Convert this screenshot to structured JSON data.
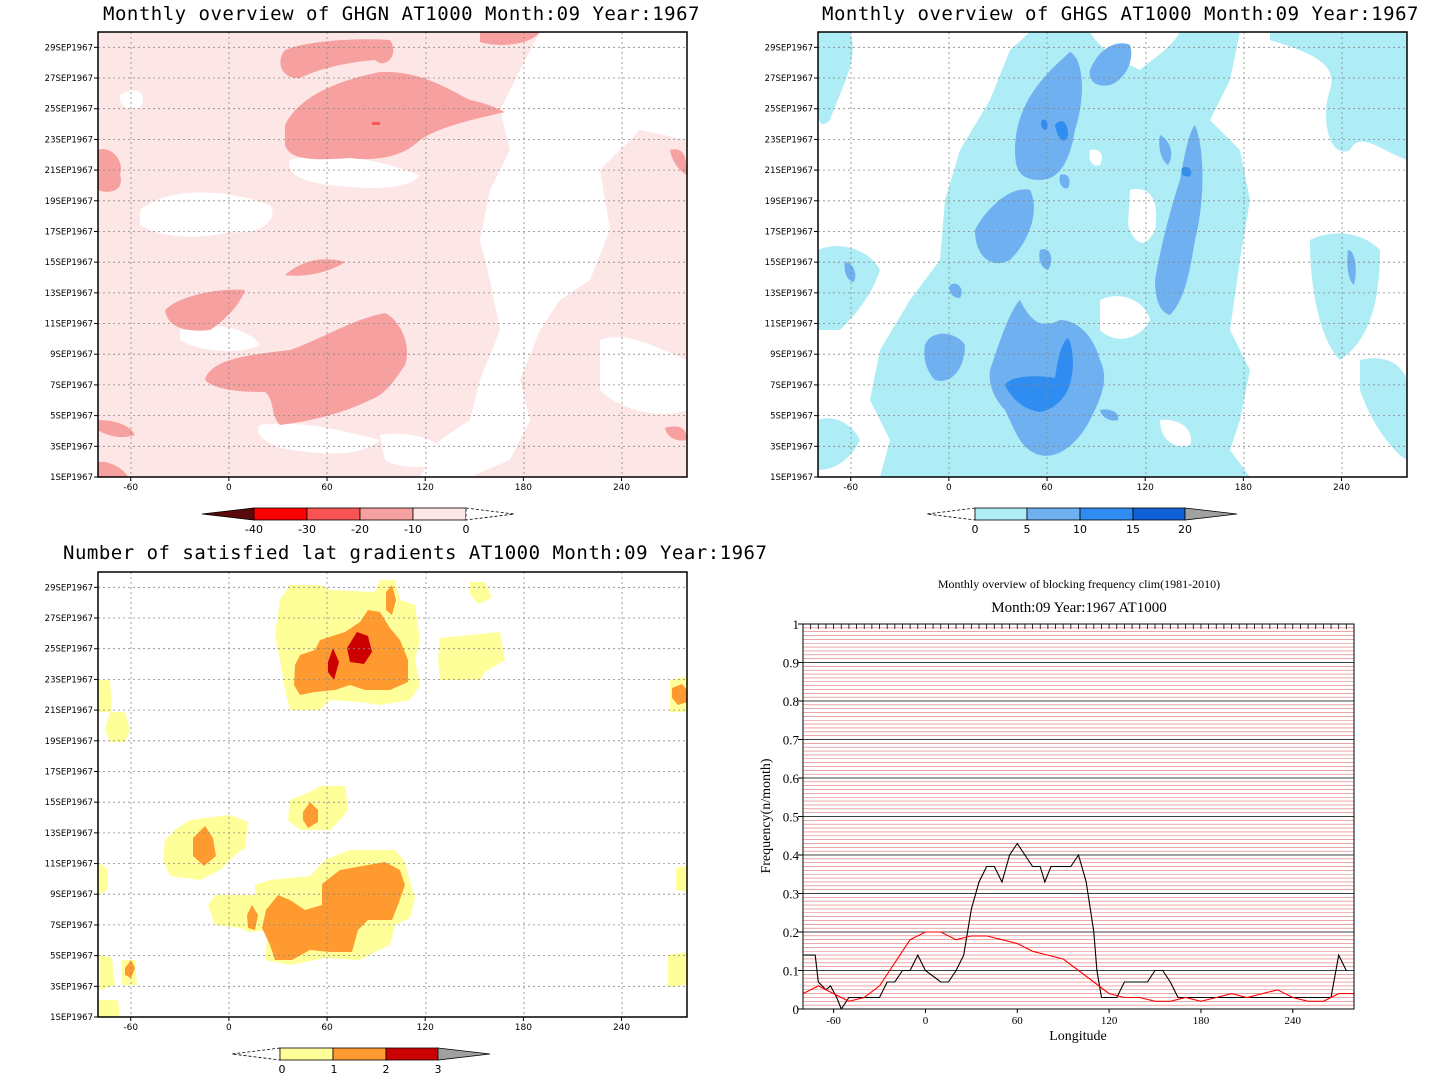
{
  "colors": {
    "red_shades": [
      "#5a0a0a",
      "#ff0000",
      "#f85454",
      "#f7a0a0",
      "#fde6e6"
    ],
    "blue_shades": [
      "#aeecf6",
      "#6fb0f0",
      "#2f8cf0",
      "#1060d8"
    ],
    "orange_shades": [
      "#ffff9a",
      "#ff9a30",
      "#cc0000"
    ],
    "line_black": "#000000",
    "line_red": "#ff0000",
    "grid_red": "#e07070"
  },
  "chart_data": [
    {
      "id": "ghgn",
      "type": "heatmap",
      "title": "Monthly overview of GHGN AT1000 Month:09 Year:1967",
      "xticks": [
        "-60",
        "0",
        "60",
        "120",
        "180",
        "240"
      ],
      "xtick_values": [
        -60,
        0,
        60,
        120,
        180,
        240
      ],
      "xlim": [
        -80,
        280
      ],
      "yticks": [
        "1SEP1967",
        "3SEP1967",
        "5SEP1967",
        "7SEP1967",
        "9SEP1967",
        "11SEP1967",
        "13SEP1967",
        "15SEP1967",
        "17SEP1967",
        "19SEP1967",
        "21SEP1967",
        "23SEP1967",
        "25SEP1967",
        "27SEP1967",
        "29SEP1967"
      ],
      "colorbar": {
        "labels": [
          "-40",
          "-30",
          "-20",
          "-10",
          "0"
        ]
      }
    },
    {
      "id": "ghgs",
      "type": "heatmap",
      "title": "Monthly overview of GHGS AT1000 Month:09 Year:1967",
      "xticks": [
        "-60",
        "0",
        "60",
        "120",
        "180",
        "240"
      ],
      "xtick_values": [
        -60,
        0,
        60,
        120,
        180,
        240
      ],
      "xlim": [
        -80,
        280
      ],
      "yticks": [
        "1SEP1967",
        "3SEP1967",
        "5SEP1967",
        "7SEP1967",
        "9SEP1967",
        "11SEP1967",
        "13SEP1967",
        "15SEP1967",
        "17SEP1967",
        "19SEP1967",
        "21SEP1967",
        "23SEP1967",
        "25SEP1967",
        "27SEP1967",
        "29SEP1967"
      ],
      "colorbar": {
        "labels": [
          "0",
          "5",
          "10",
          "15",
          "20"
        ]
      }
    },
    {
      "id": "gradients",
      "type": "heatmap",
      "title": "Number of satisfied lat gradients AT1000 Month:09 Year:1967",
      "xticks": [
        "-60",
        "0",
        "60",
        "120",
        "180",
        "240"
      ],
      "xtick_values": [
        -60,
        0,
        60,
        120,
        180,
        240
      ],
      "xlim": [
        -80,
        280
      ],
      "yticks": [
        "1SEP1967",
        "3SEP1967",
        "5SEP1967",
        "7SEP1967",
        "9SEP1967",
        "11SEP1967",
        "13SEP1967",
        "15SEP1967",
        "17SEP1967",
        "19SEP1967",
        "21SEP1967",
        "23SEP1967",
        "25SEP1967",
        "27SEP1967",
        "29SEP1967"
      ],
      "colorbar": {
        "labels": [
          "0",
          "1",
          "2",
          "3"
        ]
      }
    },
    {
      "id": "blocking",
      "type": "line",
      "title": "Monthly overview of blocking frequency clim(1981-2010)",
      "subtitle": "Month:09 Year:1967  AT1000",
      "xlabel": "Longitude",
      "ylabel": "Frequency(n/month)",
      "xlim": [
        -80,
        280
      ],
      "ylim": [
        0,
        1
      ],
      "xticks": [
        "-60",
        "0",
        "60",
        "120",
        "180",
        "240"
      ],
      "xtick_values": [
        -60,
        0,
        60,
        120,
        180,
        240
      ],
      "yticks": [
        "0",
        "0.1",
        "0.2",
        "0.3",
        "0.4",
        "0.5",
        "0.6",
        "0.7",
        "0.8",
        "0.9",
        "1"
      ],
      "ytick_values": [
        0,
        0.1,
        0.2,
        0.3,
        0.4,
        0.5,
        0.6,
        0.7,
        0.8,
        0.9,
        1
      ],
      "series": [
        {
          "color": "black",
          "x": [
            -80,
            -72,
            -70,
            -65,
            -62,
            -58,
            -55,
            -50,
            -40,
            -30,
            -25,
            -20,
            -15,
            -10,
            -5,
            0,
            10,
            15,
            20,
            25,
            30,
            35,
            40,
            45,
            50,
            55,
            60,
            65,
            70,
            75,
            78,
            82,
            85,
            90,
            95,
            100,
            105,
            110,
            112,
            115,
            120,
            125,
            130,
            135,
            145,
            150,
            155,
            160,
            165,
            170,
            180,
            190,
            200,
            210,
            220,
            230,
            240,
            250,
            260,
            265,
            270,
            275
          ],
          "y": [
            0.14,
            0.14,
            0.07,
            0.05,
            0.06,
            0.03,
            0.0,
            0.03,
            0.03,
            0.03,
            0.07,
            0.07,
            0.1,
            0.1,
            0.14,
            0.1,
            0.07,
            0.07,
            0.1,
            0.14,
            0.26,
            0.33,
            0.37,
            0.37,
            0.33,
            0.4,
            0.43,
            0.4,
            0.37,
            0.37,
            0.33,
            0.37,
            0.37,
            0.37,
            0.37,
            0.4,
            0.33,
            0.2,
            0.1,
            0.03,
            0.03,
            0.03,
            0.07,
            0.07,
            0.07,
            0.1,
            0.1,
            0.07,
            0.03,
            0.03,
            0.03,
            0.03,
            0.03,
            0.03,
            0.03,
            0.03,
            0.03,
            0.03,
            0.03,
            0.03,
            0.14,
            0.1
          ]
        },
        {
          "color": "red",
          "x": [
            -80,
            -70,
            -60,
            -50,
            -40,
            -30,
            -20,
            -10,
            0,
            10,
            20,
            30,
            40,
            50,
            60,
            70,
            80,
            90,
            100,
            110,
            120,
            130,
            140,
            150,
            160,
            170,
            180,
            190,
            200,
            210,
            220,
            230,
            240,
            250,
            260,
            270,
            280
          ],
          "y": [
            0.04,
            0.06,
            0.04,
            0.02,
            0.03,
            0.06,
            0.12,
            0.18,
            0.2,
            0.2,
            0.18,
            0.19,
            0.19,
            0.18,
            0.17,
            0.15,
            0.14,
            0.13,
            0.1,
            0.07,
            0.04,
            0.03,
            0.03,
            0.02,
            0.02,
            0.03,
            0.02,
            0.03,
            0.04,
            0.03,
            0.04,
            0.05,
            0.03,
            0.02,
            0.02,
            0.04,
            0.04
          ]
        }
      ]
    }
  ]
}
